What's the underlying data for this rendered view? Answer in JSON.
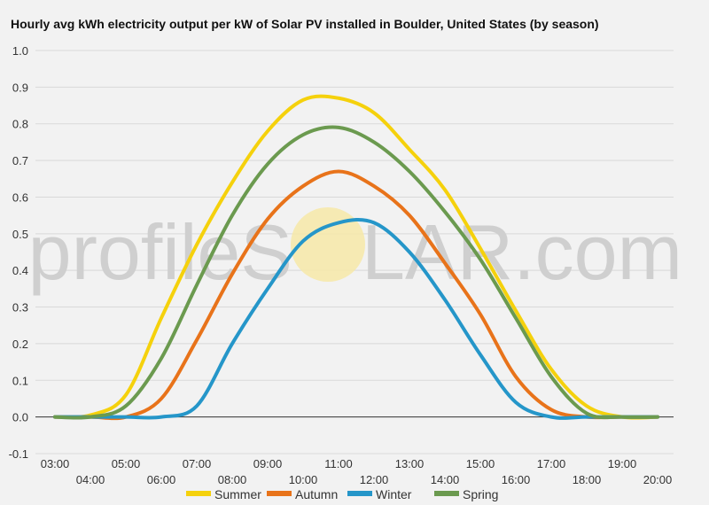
{
  "watermark": {
    "text_left": "profileS",
    "text_right": "LAR.com",
    "sun_color": "#f7e9a8"
  },
  "chart_data": {
    "type": "line",
    "title": "Hourly avg kWh electricity output per kW of Solar PV installed in Boulder, United States (by season)",
    "xlabel": "",
    "ylabel": "",
    "ylim": [
      -0.1,
      1.0
    ],
    "yticks": [
      "-0.1",
      "0.0",
      "0.1",
      "0.2",
      "0.3",
      "0.4",
      "0.5",
      "0.6",
      "0.7",
      "0.8",
      "0.9",
      "1.0"
    ],
    "x": [
      "03:00",
      "04:00",
      "05:00",
      "06:00",
      "07:00",
      "08:00",
      "09:00",
      "10:00",
      "11:00",
      "12:00",
      "13:00",
      "14:00",
      "15:00",
      "16:00",
      "17:00",
      "18:00",
      "19:00",
      "20:00"
    ],
    "grid": true,
    "legend_position": "bottom",
    "series": [
      {
        "name": "Summer",
        "color": "#f5d10c",
        "values": [
          0.0,
          0.005,
          0.06,
          0.27,
          0.47,
          0.64,
          0.78,
          0.865,
          0.87,
          0.83,
          0.73,
          0.62,
          0.46,
          0.29,
          0.13,
          0.03,
          0.0,
          0.0
        ]
      },
      {
        "name": "Autumn",
        "color": "#e8731a",
        "values": [
          0.0,
          0.0,
          0.0,
          0.05,
          0.21,
          0.39,
          0.54,
          0.63,
          0.67,
          0.63,
          0.55,
          0.42,
          0.28,
          0.11,
          0.02,
          0.0,
          0.0,
          0.0
        ]
      },
      {
        "name": "Winter",
        "color": "#2596c9",
        "values": [
          0.0,
          0.0,
          0.0,
          0.0,
          0.03,
          0.2,
          0.35,
          0.48,
          0.53,
          0.53,
          0.45,
          0.32,
          0.17,
          0.04,
          0.0,
          0.0,
          0.0,
          0.0
        ]
      },
      {
        "name": "Spring",
        "color": "#6b9a4f",
        "values": [
          0.0,
          0.0,
          0.03,
          0.16,
          0.36,
          0.55,
          0.69,
          0.77,
          0.79,
          0.75,
          0.67,
          0.56,
          0.43,
          0.27,
          0.11,
          0.01,
          0.0,
          0.0
        ]
      }
    ]
  }
}
